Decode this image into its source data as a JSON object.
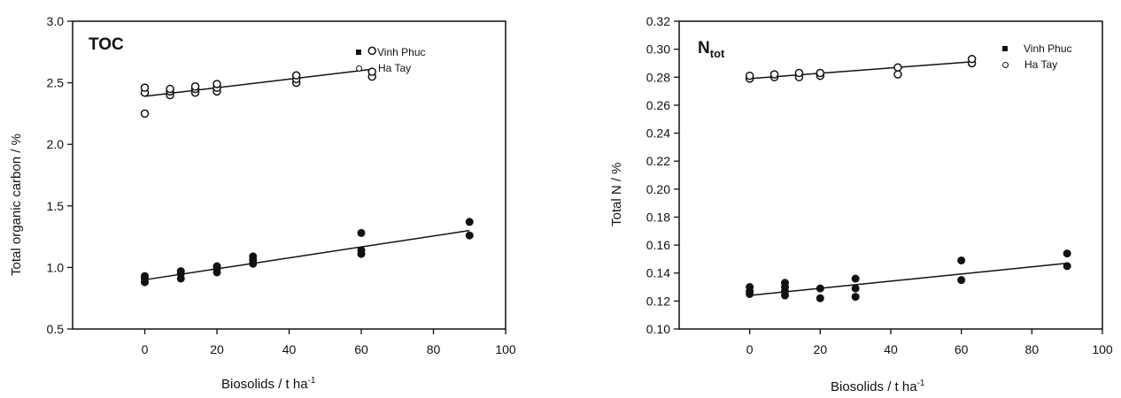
{
  "chart_data": [
    {
      "type": "scatter",
      "title": "TOC",
      "xlabel": "Biosolids / t ha",
      "xlabel_sup": "-1",
      "ylabel": "Total organic carbon / %",
      "xlim": [
        -20,
        100
      ],
      "ylim": [
        0.5,
        3.0
      ],
      "xticks": [
        "0",
        "20",
        "40",
        "60",
        "80",
        "100"
      ],
      "xtick_values": [
        0,
        20,
        40,
        60,
        80,
        100
      ],
      "yticks": [
        "0.5",
        "1.0",
        "1.5",
        "2.0",
        "2.5",
        "3.0"
      ],
      "ytick_values": [
        0.5,
        1.0,
        1.5,
        2.0,
        2.5,
        3.0
      ],
      "legend_position": "top-right",
      "series": [
        {
          "name": "Vinh Phuc",
          "marker": "filled-circle",
          "x": [
            0,
            0,
            0,
            10,
            10,
            10,
            20,
            20,
            20,
            30,
            30,
            30,
            60,
            60,
            60,
            90,
            90
          ],
          "y": [
            0.88,
            0.91,
            0.93,
            0.91,
            0.95,
            0.97,
            0.96,
            0.99,
            1.01,
            1.03,
            1.06,
            1.09,
            1.11,
            1.14,
            1.28,
            1.26,
            1.37
          ],
          "trendline": [
            [
              0,
              0.9
            ],
            [
              90,
              1.3
            ]
          ]
        },
        {
          "name": "Ha Tay",
          "marker": "open-circle",
          "x": [
            0,
            0,
            0,
            7,
            7,
            7,
            14,
            14,
            14,
            20,
            20,
            20,
            42,
            42,
            42,
            63,
            63,
            63
          ],
          "y": [
            2.25,
            2.42,
            2.46,
            2.4,
            2.43,
            2.45,
            2.42,
            2.45,
            2.47,
            2.43,
            2.46,
            2.49,
            2.5,
            2.53,
            2.56,
            2.55,
            2.59,
            2.76
          ],
          "trendline": [
            [
              0,
              2.39
            ],
            [
              63,
              2.61
            ]
          ]
        }
      ]
    },
    {
      "type": "scatter",
      "title": "N",
      "title_sub": "tot",
      "xlabel": "Biosolids / t ha",
      "xlabel_sup": "-1",
      "ylabel": "Total N / %",
      "xlim": [
        -20,
        100
      ],
      "ylim": [
        0.1,
        0.32
      ],
      "xticks": [
        "0",
        "20",
        "40",
        "60",
        "80",
        "100"
      ],
      "xtick_values": [
        0,
        20,
        40,
        60,
        80,
        100
      ],
      "yticks": [
        "0.10",
        "0.12",
        "0.14",
        "0.16",
        "0.18",
        "0.20",
        "0.22",
        "0.24",
        "0.26",
        "0.28",
        "0.30",
        "0.32"
      ],
      "ytick_values": [
        0.1,
        0.12,
        0.14,
        0.16,
        0.18,
        0.2,
        0.22,
        0.24,
        0.26,
        0.28,
        0.3,
        0.32
      ],
      "legend_position": "top-right",
      "series": [
        {
          "name": "Vinh Phuc",
          "marker": "filled-circle",
          "x": [
            0,
            0,
            0,
            10,
            10,
            10,
            10,
            20,
            20,
            30,
            30,
            30,
            60,
            60,
            90,
            90
          ],
          "y": [
            0.125,
            0.127,
            0.13,
            0.124,
            0.127,
            0.13,
            0.133,
            0.122,
            0.129,
            0.123,
            0.129,
            0.136,
            0.135,
            0.149,
            0.145,
            0.154
          ],
          "trendline": [
            [
              0,
              0.124
            ],
            [
              90,
              0.147
            ]
          ]
        },
        {
          "name": "Ha Tay",
          "marker": "open-circle",
          "x": [
            0,
            0,
            7,
            7,
            14,
            14,
            20,
            20,
            42,
            42,
            63,
            63
          ],
          "y": [
            0.279,
            0.281,
            0.28,
            0.282,
            0.28,
            0.283,
            0.281,
            0.283,
            0.282,
            0.287,
            0.29,
            0.293
          ],
          "trendline": [
            [
              0,
              0.279
            ],
            [
              63,
              0.291
            ]
          ]
        }
      ]
    }
  ]
}
